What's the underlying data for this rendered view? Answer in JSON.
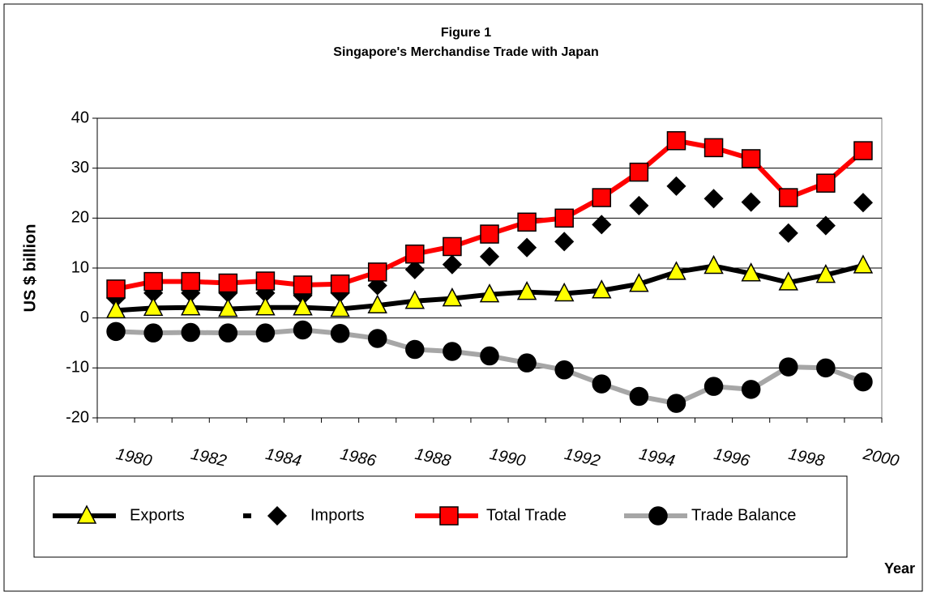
{
  "chart_data": {
    "type": "line",
    "title": "Figure 1",
    "subtitle": "Singapore's Merchandise Trade with Japan",
    "y_label": "US $ billion",
    "x_label": "Year",
    "categories": [
      1980,
      null,
      1982,
      null,
      1984,
      null,
      1986,
      null,
      1988,
      null,
      1990,
      null,
      1992,
      null,
      1994,
      null,
      1996,
      null,
      1998,
      null,
      2000
    ],
    "ylim": [
      -20,
      40
    ],
    "yticks": [
      -20,
      -10,
      0,
      10,
      20,
      30,
      40
    ],
    "grid": true,
    "series": [
      {
        "name": "Trade Balance",
        "color": "#a6a6a6",
        "marker": "circle",
        "marker_color": "#000000",
        "line": true,
        "values": [
          -2.7,
          -3.0,
          -2.9,
          -3.0,
          -3.0,
          -2.4,
          -3.1,
          -4.1,
          -6.3,
          -6.7,
          -7.6,
          -9.0,
          -10.4,
          -13.2,
          -15.7,
          -17.1,
          -13.7,
          -14.3,
          -9.8,
          -10.0,
          -12.8
        ]
      },
      {
        "name": "Imports",
        "color": "#000000",
        "marker": "diamond",
        "marker_color": "#000000",
        "line": false,
        "values": [
          4.0,
          5.0,
          5.0,
          5.0,
          5.0,
          4.5,
          5.0,
          6.5,
          9.7,
          10.7,
          12.3,
          14.1,
          15.3,
          18.7,
          22.5,
          26.4,
          23.9,
          23.2,
          17.0,
          18.5,
          23.1
        ]
      },
      {
        "name": "Total Trade",
        "color": "#ff0000",
        "marker": "square",
        "marker_color": "#ff0000",
        "line": true,
        "values": [
          5.8,
          7.3,
          7.3,
          7.0,
          7.4,
          6.6,
          6.8,
          9.2,
          12.8,
          14.3,
          16.8,
          19.2,
          20.0,
          24.1,
          29.2,
          35.5,
          34.1,
          31.9,
          24.1,
          27.0,
          33.5
        ]
      },
      {
        "name": "Exports",
        "color": "#000000",
        "marker": "triangle",
        "marker_color": "#ffff00",
        "line": true,
        "values": [
          1.5,
          2.0,
          2.1,
          1.8,
          2.1,
          2.1,
          1.8,
          2.5,
          3.4,
          3.9,
          4.7,
          5.2,
          4.9,
          5.5,
          6.8,
          9.2,
          10.4,
          8.9,
          7.1,
          8.6,
          10.5
        ]
      }
    ],
    "legend_order": [
      3,
      1,
      2,
      0
    ]
  }
}
